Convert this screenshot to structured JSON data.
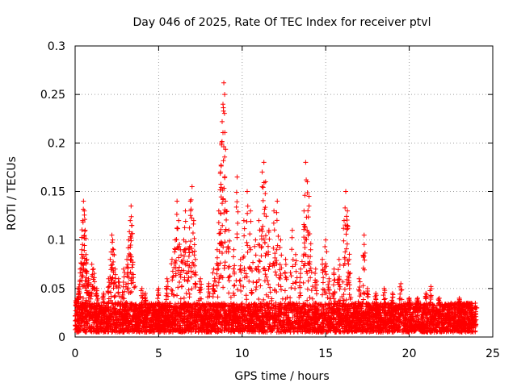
{
  "chart_data": {
    "type": "scatter",
    "title": "Day 046 of 2025, Rate Of TEC Index for receiver ptvl",
    "xlabel": "GPS time / hours",
    "ylabel": "ROTI / TECUs",
    "xlim": [
      0,
      25
    ],
    "ylim": [
      0,
      0.3
    ],
    "xticks": [
      0,
      5,
      10,
      15,
      20,
      25
    ],
    "xtick_labels": [
      "0",
      "5",
      "10",
      "15",
      "20",
      "25"
    ],
    "yticks": [
      0,
      0.05,
      0.1,
      0.15,
      0.2,
      0.25,
      0.3
    ],
    "ytick_labels": [
      "0",
      "0.05",
      "0.1",
      "0.15",
      "0.2",
      "0.25",
      "0.3"
    ],
    "grid": true,
    "marker": "+",
    "series": [
      {
        "name": "ROTI",
        "color": "#ff0000",
        "baseline": {
          "x_range": [
            0,
            24
          ],
          "typical_y_range": [
            0.005,
            0.035
          ],
          "note": "dense continuous cloud of points across the full day"
        },
        "points": [
          {
            "x": 0.1,
            "y": 0.04
          },
          {
            "x": 0.2,
            "y": 0.05
          },
          {
            "x": 0.3,
            "y": 0.07
          },
          {
            "x": 0.4,
            "y": 0.09
          },
          {
            "x": 0.45,
            "y": 0.12
          },
          {
            "x": 0.5,
            "y": 0.14
          },
          {
            "x": 0.55,
            "y": 0.13
          },
          {
            "x": 0.6,
            "y": 0.11
          },
          {
            "x": 0.65,
            "y": 0.085
          },
          {
            "x": 0.7,
            "y": 0.08
          },
          {
            "x": 0.8,
            "y": 0.06
          },
          {
            "x": 1.0,
            "y": 0.075
          },
          {
            "x": 1.1,
            "y": 0.07
          },
          {
            "x": 1.3,
            "y": 0.05
          },
          {
            "x": 1.7,
            "y": 0.045
          },
          {
            "x": 2.0,
            "y": 0.06
          },
          {
            "x": 2.1,
            "y": 0.08
          },
          {
            "x": 2.2,
            "y": 0.105
          },
          {
            "x": 2.25,
            "y": 0.1
          },
          {
            "x": 2.3,
            "y": 0.09
          },
          {
            "x": 2.4,
            "y": 0.07
          },
          {
            "x": 2.6,
            "y": 0.06
          },
          {
            "x": 2.9,
            "y": 0.07
          },
          {
            "x": 3.1,
            "y": 0.08
          },
          {
            "x": 3.2,
            "y": 0.1
          },
          {
            "x": 3.3,
            "y": 0.12
          },
          {
            "x": 3.35,
            "y": 0.135
          },
          {
            "x": 3.4,
            "y": 0.115
          },
          {
            "x": 4.0,
            "y": 0.05
          },
          {
            "x": 4.2,
            "y": 0.045
          },
          {
            "x": 5.0,
            "y": 0.05
          },
          {
            "x": 5.5,
            "y": 0.06
          },
          {
            "x": 5.8,
            "y": 0.08
          },
          {
            "x": 6.0,
            "y": 0.1
          },
          {
            "x": 6.1,
            "y": 0.14
          },
          {
            "x": 6.2,
            "y": 0.12
          },
          {
            "x": 6.3,
            "y": 0.09
          },
          {
            "x": 6.5,
            "y": 0.1
          },
          {
            "x": 6.6,
            "y": 0.13
          },
          {
            "x": 6.8,
            "y": 0.09
          },
          {
            "x": 6.9,
            "y": 0.14
          },
          {
            "x": 7.0,
            "y": 0.155
          },
          {
            "x": 7.1,
            "y": 0.12
          },
          {
            "x": 7.2,
            "y": 0.08
          },
          {
            "x": 7.5,
            "y": 0.06
          },
          {
            "x": 8.0,
            "y": 0.055
          },
          {
            "x": 8.3,
            "y": 0.07
          },
          {
            "x": 8.5,
            "y": 0.09
          },
          {
            "x": 8.6,
            "y": 0.13
          },
          {
            "x": 8.7,
            "y": 0.17
          },
          {
            "x": 8.75,
            "y": 0.2
          },
          {
            "x": 8.8,
            "y": 0.222
          },
          {
            "x": 8.85,
            "y": 0.24
          },
          {
            "x": 8.9,
            "y": 0.262
          },
          {
            "x": 8.95,
            "y": 0.25
          },
          {
            "x": 9.0,
            "y": 0.14
          },
          {
            "x": 9.2,
            "y": 0.11
          },
          {
            "x": 9.5,
            "y": 0.09
          },
          {
            "x": 9.7,
            "y": 0.165
          },
          {
            "x": 9.9,
            "y": 0.08
          },
          {
            "x": 10.1,
            "y": 0.12
          },
          {
            "x": 10.3,
            "y": 0.15
          },
          {
            "x": 10.5,
            "y": 0.13
          },
          {
            "x": 10.8,
            "y": 0.1
          },
          {
            "x": 11.0,
            "y": 0.12
          },
          {
            "x": 11.2,
            "y": 0.17
          },
          {
            "x": 11.3,
            "y": 0.18
          },
          {
            "x": 11.4,
            "y": 0.16
          },
          {
            "x": 11.6,
            "y": 0.11
          },
          {
            "x": 11.9,
            "y": 0.13
          },
          {
            "x": 12.1,
            "y": 0.14
          },
          {
            "x": 12.3,
            "y": 0.1
          },
          {
            "x": 12.6,
            "y": 0.08
          },
          {
            "x": 13.0,
            "y": 0.11
          },
          {
            "x": 13.2,
            "y": 0.085
          },
          {
            "x": 13.5,
            "y": 0.07
          },
          {
            "x": 13.7,
            "y": 0.13
          },
          {
            "x": 13.8,
            "y": 0.18
          },
          {
            "x": 13.9,
            "y": 0.16
          },
          {
            "x": 14.0,
            "y": 0.145
          },
          {
            "x": 14.1,
            "y": 0.09
          },
          {
            "x": 14.4,
            "y": 0.07
          },
          {
            "x": 14.8,
            "y": 0.08
          },
          {
            "x": 15.0,
            "y": 0.1
          },
          {
            "x": 15.2,
            "y": 0.06
          },
          {
            "x": 15.5,
            "y": 0.07
          },
          {
            "x": 15.8,
            "y": 0.08
          },
          {
            "x": 16.1,
            "y": 0.12
          },
          {
            "x": 16.2,
            "y": 0.15
          },
          {
            "x": 16.3,
            "y": 0.13
          },
          {
            "x": 16.4,
            "y": 0.08
          },
          {
            "x": 17.0,
            "y": 0.06
          },
          {
            "x": 17.3,
            "y": 0.105
          },
          {
            "x": 17.5,
            "y": 0.05
          },
          {
            "x": 18.0,
            "y": 0.045
          },
          {
            "x": 18.5,
            "y": 0.05
          },
          {
            "x": 19.0,
            "y": 0.045
          },
          {
            "x": 19.5,
            "y": 0.055
          },
          {
            "x": 20.0,
            "y": 0.04
          },
          {
            "x": 20.5,
            "y": 0.04
          },
          {
            "x": 21.0,
            "y": 0.045
          },
          {
            "x": 21.3,
            "y": 0.052
          },
          {
            "x": 21.8,
            "y": 0.04
          },
          {
            "x": 22.5,
            "y": 0.035
          },
          {
            "x": 23.0,
            "y": 0.04
          },
          {
            "x": 23.5,
            "y": 0.035
          },
          {
            "x": 24.0,
            "y": 0.03
          }
        ]
      }
    ]
  }
}
